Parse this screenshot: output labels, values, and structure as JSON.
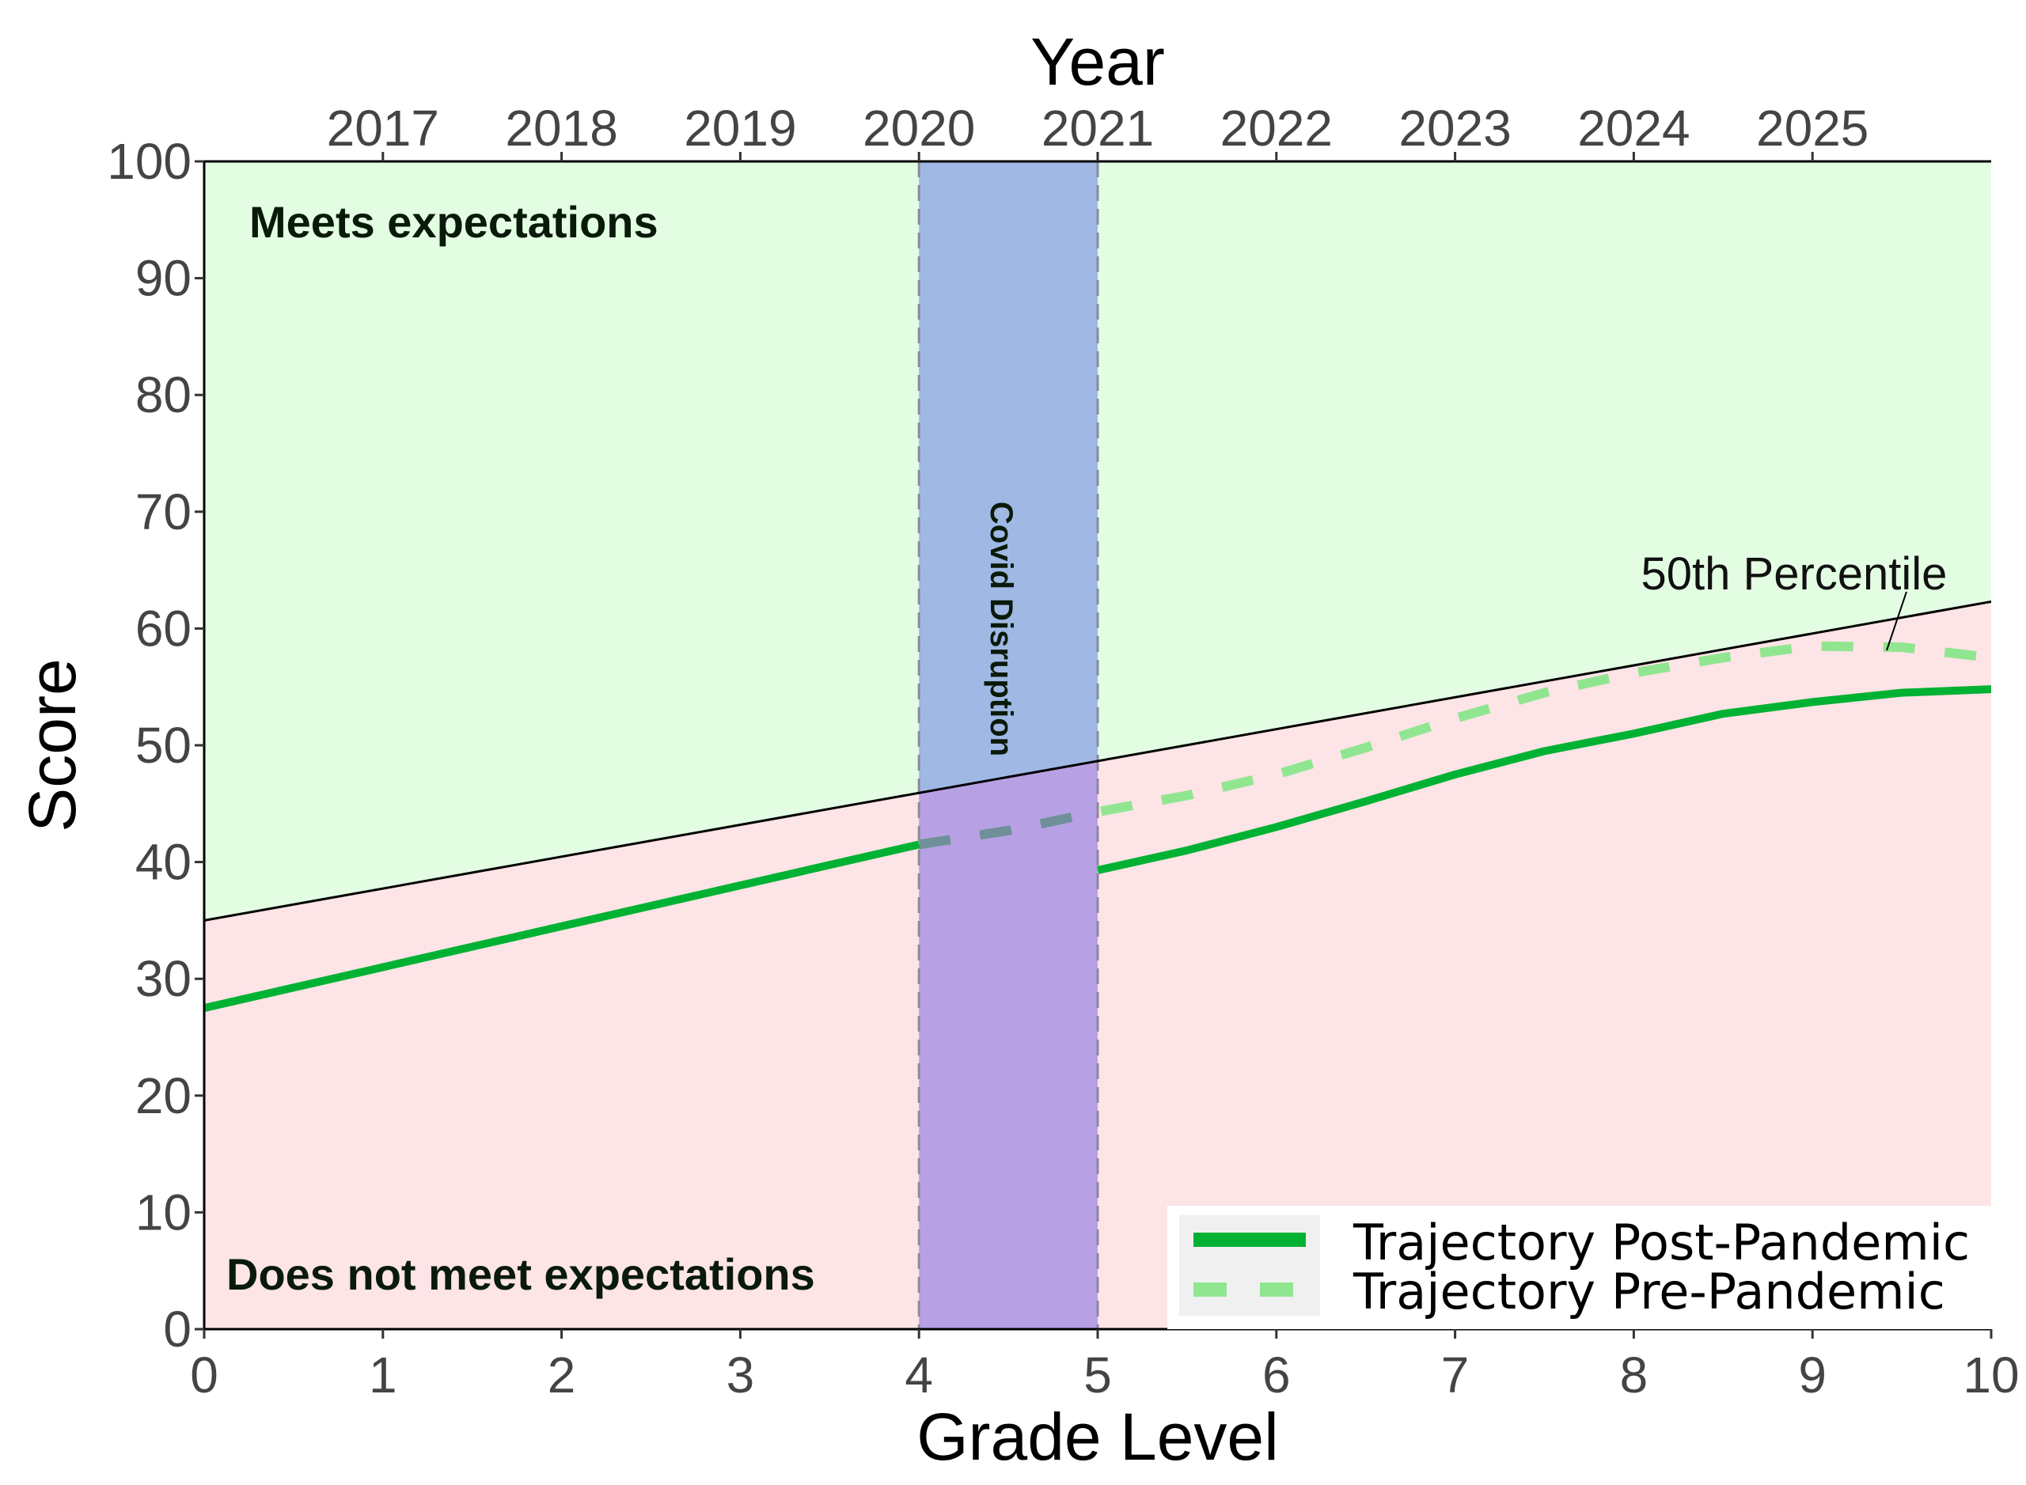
{
  "chart_data": {
    "type": "line",
    "title": "",
    "xlabel": "Grade Level",
    "ylabel": "Score",
    "x2label": "Year",
    "xlim": [
      0,
      10
    ],
    "ylim": [
      0,
      100
    ],
    "xticks": [
      0,
      1,
      2,
      3,
      4,
      5,
      6,
      7,
      8,
      9,
      10
    ],
    "yticks": [
      0,
      10,
      20,
      30,
      40,
      50,
      60,
      70,
      80,
      90,
      100
    ],
    "x2ticks": [
      {
        "x": 1,
        "label": "2017"
      },
      {
        "x": 2,
        "label": "2018"
      },
      {
        "x": 3,
        "label": "2019"
      },
      {
        "x": 4,
        "label": "2020"
      },
      {
        "x": 5,
        "label": "2021"
      },
      {
        "x": 6,
        "label": "2022"
      },
      {
        "x": 7,
        "label": "2023"
      },
      {
        "x": 8,
        "label": "2024"
      },
      {
        "x": 9,
        "label": "2025"
      }
    ],
    "regions": {
      "above_label": "Meets expectations",
      "below_label": "Does not meet expectations",
      "above_color": "#e3fde3",
      "below_color": "#fde4e6",
      "covid": {
        "x_start": 4,
        "x_end": 5,
        "label": "Covid Disruption",
        "upper_color": "#a0b8e4",
        "lower_color": "#b8a0e4"
      }
    },
    "percentile_line": {
      "label": "50th Percentile",
      "x": [
        0,
        10
      ],
      "y": [
        35,
        62.3
      ],
      "color": "#000000"
    },
    "series": [
      {
        "name": "Trajectory Post-Pandemic",
        "style": "solid",
        "color": "#00b233",
        "segments": [
          {
            "x": [
              0,
              1,
              2,
              3,
              4
            ],
            "y": [
              27.5,
              31,
              34.5,
              38,
              41.5
            ]
          },
          {
            "x": [
              5,
              5.5,
              6,
              6.5,
              7,
              7.5,
              8,
              8.5,
              9,
              9.5,
              10
            ],
            "y": [
              39.3,
              41,
              43,
              45.2,
              47.5,
              49.5,
              51,
              52.7,
              53.7,
              54.5,
              54.8
            ]
          }
        ]
      },
      {
        "name": "Trajectory Pre-Pandemic",
        "style": "dashed",
        "color": "#90e690",
        "segments": [
          {
            "x": [
              4,
              4.5,
              5,
              5.5,
              6,
              6.5,
              7,
              7.5,
              8,
              8.5,
              9,
              9.5,
              10
            ],
            "y": [
              41.5,
              42.7,
              44.3,
              45.7,
              47.5,
              49.8,
              52.3,
              54.5,
              56.2,
              57.5,
              58.5,
              58.4,
              57.5
            ]
          }
        ]
      }
    ],
    "legend": "bottom-right"
  }
}
